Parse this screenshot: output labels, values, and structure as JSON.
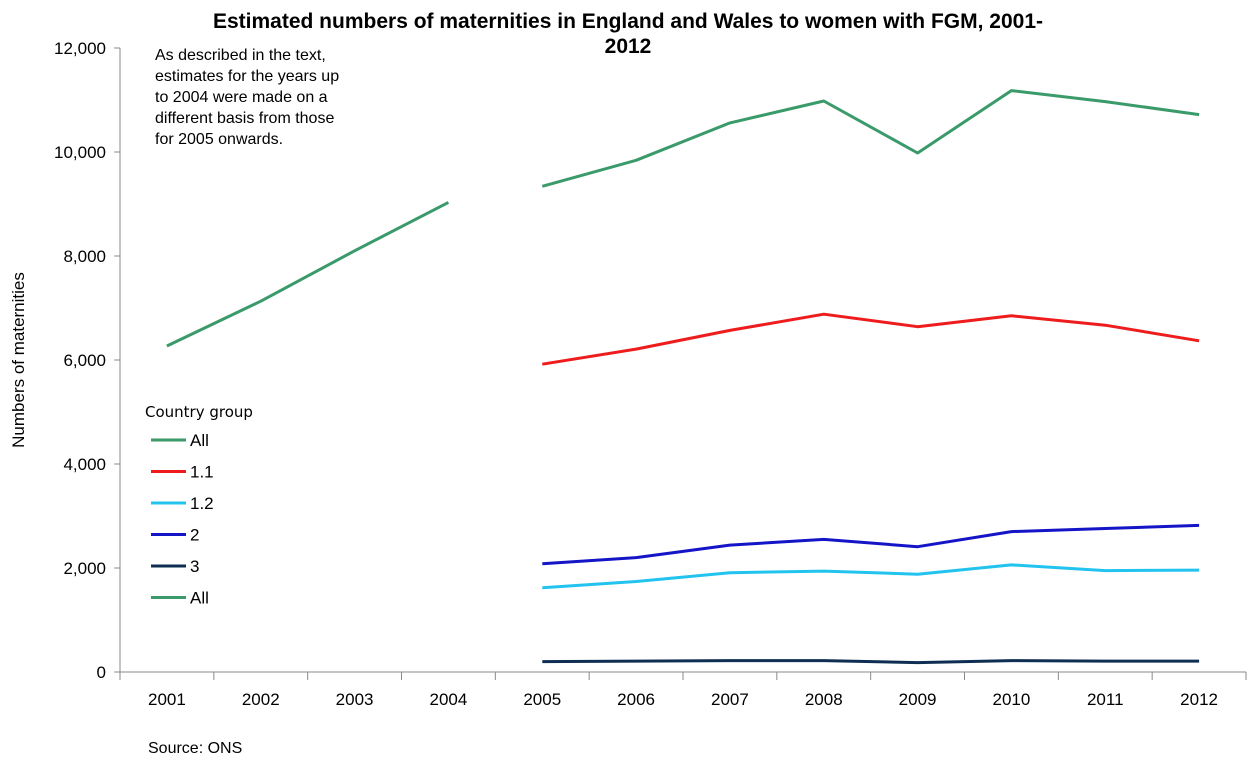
{
  "chart_data": {
    "type": "line",
    "title": "Estimated numbers of maternities in England and Wales to women with FGM, 2001-2012",
    "title_lines": [
      "Estimated numbers of maternities in England and Wales to women with FGM, 2001-",
      "2012"
    ],
    "xlabel": "",
    "ylabel": "Numbers of maternities",
    "ylim": [
      0,
      12000
    ],
    "yticks": [
      "0",
      "2,000",
      "4,000",
      "6,000",
      "8,000",
      "10,000",
      "12,000"
    ],
    "ytick_values": [
      0,
      2000,
      4000,
      6000,
      8000,
      10000,
      12000
    ],
    "categories": [
      "2001",
      "2002",
      "2003",
      "2004",
      "2005",
      "2006",
      "2007",
      "2008",
      "2009",
      "2010",
      "2011",
      "2012"
    ],
    "grid": false,
    "legend_title": "Country group",
    "legend_position": "left",
    "annotation_lines": [
      "As described in the text,",
      "estimates for the years up",
      "to 2004 were made on a",
      "different basis from those",
      "for 2005 onwards."
    ],
    "source": "Source: ONS",
    "series": [
      {
        "name": "All",
        "color": "#3a9a6a",
        "values": [
          6270,
          7130,
          8100,
          9030,
          null,
          null,
          null,
          null,
          null,
          null,
          null,
          null
        ]
      },
      {
        "name": "1.1",
        "color": "#ee1c1c",
        "values": [
          null,
          null,
          null,
          null,
          5920,
          6210,
          6570,
          6880,
          6640,
          6850,
          6670,
          6370
        ]
      },
      {
        "name": "1.2",
        "color": "#22c3ee",
        "values": [
          null,
          null,
          null,
          null,
          1620,
          1740,
          1910,
          1940,
          1880,
          2060,
          1950,
          1960
        ]
      },
      {
        "name": "2",
        "color": "#1515c8",
        "values": [
          null,
          null,
          null,
          null,
          2080,
          2200,
          2440,
          2550,
          2410,
          2700,
          2760,
          2820
        ]
      },
      {
        "name": "3",
        "color": "#0e2f52",
        "values": [
          null,
          null,
          null,
          null,
          200,
          210,
          220,
          220,
          180,
          220,
          210,
          210
        ]
      },
      {
        "name": "All",
        "color": "#3a9a6a",
        "values": [
          null,
          null,
          null,
          null,
          9340,
          9840,
          10560,
          10980,
          9980,
          11180,
          10970,
          10720
        ]
      }
    ]
  }
}
